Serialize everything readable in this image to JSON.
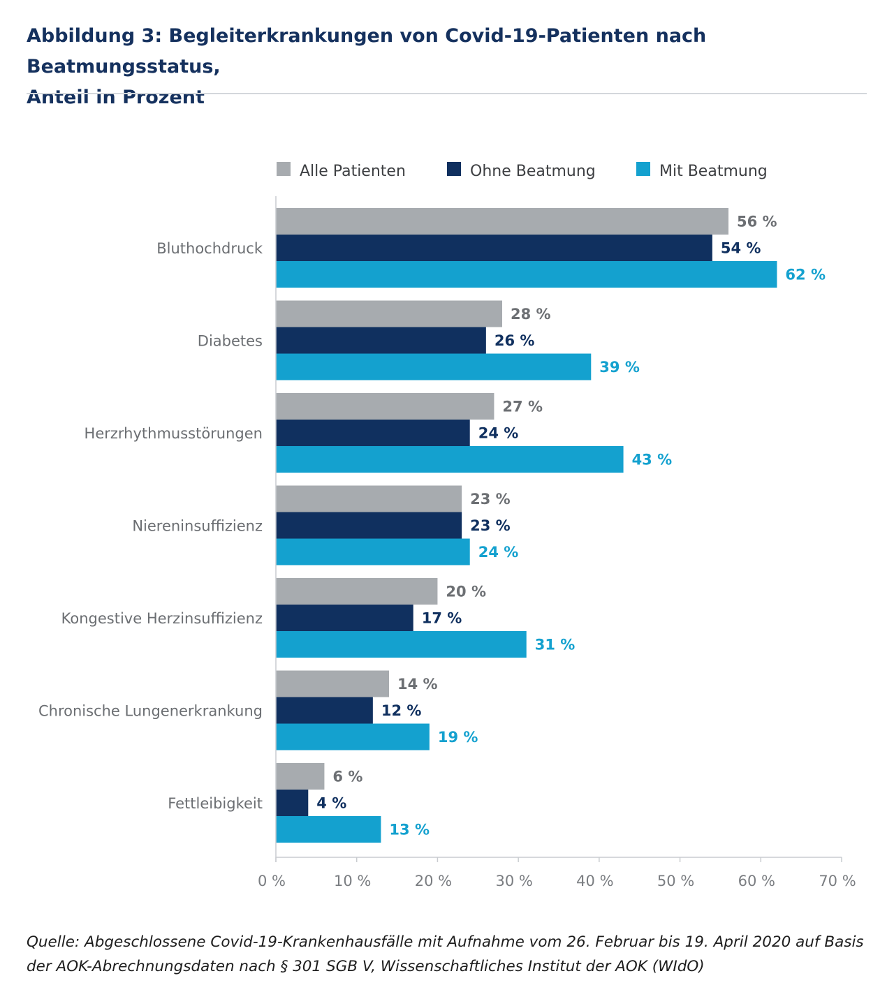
{
  "title": {
    "line1": "Abbildung 3: Begleiterkrankungen von Covid-19-Patienten nach Beatmungsstatus,",
    "line2": "Anteil in Prozent"
  },
  "source": {
    "line1": "Quelle: Abgeschlossene Covid-19-Krankenhausfälle mit Aufnahme vom 26. Februar bis 19. April 2020 auf Basis",
    "line2": "der AOK-Abrechnungsdaten nach § 301 SGB V, Wissenschaftliches Institut der AOK (WIdO)"
  },
  "chart_data": {
    "type": "bar",
    "orientation": "horizontal",
    "title": "Begleiterkrankungen von Covid-19-Patienten nach Beatmungsstatus, Anteil in Prozent",
    "categories": [
      "Bluthochdruck",
      "Diabetes",
      "Herzrhythmusstörungen",
      "Niereninsuffizienz",
      "Kongestive Herzinsuffizienz",
      "Chronische Lungenerkrankung",
      "Fettleibigkeit"
    ],
    "series": [
      {
        "name": "Alle Patienten",
        "color": "#a7abaf",
        "label_color": "#6c6f73",
        "values": [
          56,
          28,
          27,
          23,
          20,
          14,
          6
        ]
      },
      {
        "name": "Ohne Beatmung",
        "color": "#10305f",
        "label_color": "#10305f",
        "values": [
          54,
          26,
          24,
          23,
          17,
          12,
          4
        ]
      },
      {
        "name": "Mit Beatmung",
        "color": "#14a1cf",
        "label_color": "#14a1cf",
        "values": [
          62,
          39,
          43,
          24,
          31,
          19,
          13
        ]
      }
    ],
    "value_suffix": "%",
    "xlim": [
      0,
      70
    ],
    "xticks": [
      0,
      10,
      20,
      30,
      40,
      50,
      60,
      70
    ],
    "xtick_labels": [
      "0%",
      "10%",
      "20%",
      "30%",
      "40%",
      "50%",
      "60%",
      "70%"
    ],
    "xlabel": "",
    "ylabel": "",
    "legend_position": "top",
    "grid": false,
    "axis_color": "#c9ccd0",
    "category_label_color": "#6b6e72",
    "tick_label_color": "#7a7d81"
  }
}
